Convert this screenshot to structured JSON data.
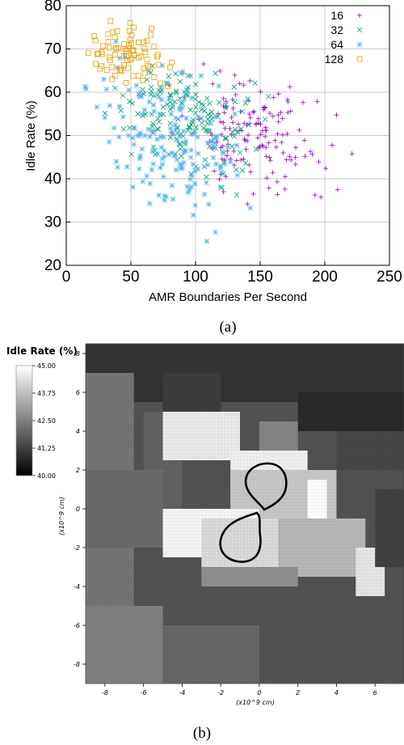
{
  "chart_data": [
    {
      "type": "scatter",
      "panel_caption": "(a)",
      "xlabel": "AMR Boundaries Per Second",
      "ylabel": "Idle Rate (%)",
      "xlim": [
        0,
        250
      ],
      "ylim": [
        20,
        80
      ],
      "xticks": [
        "0",
        "50",
        "100",
        "150",
        "200",
        "250"
      ],
      "yticks": [
        "20",
        "30",
        "40",
        "50",
        "60",
        "70",
        "80"
      ],
      "grid": true,
      "legend_position": "top-right",
      "series": [
        {
          "name": "16",
          "marker": "+",
          "color": "#9400d3",
          "cluster": {
            "x": [
              60,
              230
            ],
            "y": [
              33,
              68
            ]
          },
          "count": 150
        },
        {
          "name": "32",
          "marker": "x",
          "color": "#009e73",
          "cluster": {
            "x": [
              20,
              170
            ],
            "y": [
              36,
              72
            ]
          },
          "count": 150
        },
        {
          "name": "64",
          "marker": "*",
          "color": "#56b4e9",
          "cluster": {
            "x": [
              0,
              155
            ],
            "y": [
              24,
              72
            ]
          },
          "count": 170
        },
        {
          "name": "128",
          "marker": "square",
          "color": "#e69f00",
          "cluster": {
            "x": [
              0,
              100
            ],
            "y": [
              58,
              79
            ]
          },
          "count": 80
        }
      ]
    },
    {
      "type": "heatmap",
      "panel_caption": "(b)",
      "colorbar_title": "Idle Rate (%)",
      "colorbar_ticks": [
        "45.00",
        "43.75",
        "42.50",
        "41.25",
        "40.00"
      ],
      "colorbar_range": [
        40.0,
        45.0
      ],
      "xlabel": "(x10^9 cm)",
      "ylabel": "(x10^9 cm)",
      "xticks": [
        "-8",
        "-6",
        "-4",
        "-2",
        "0",
        "2",
        "4",
        "6"
      ],
      "yticks": [
        "8",
        "6",
        "4",
        "2",
        "0",
        "-2",
        "-4",
        "-6",
        "-8"
      ],
      "xlim": [
        -9,
        7.5
      ],
      "ylim": [
        -9,
        8.5
      ],
      "colors": {
        "low": "#000000",
        "high": "#ffffff",
        "contour": "#000000"
      }
    }
  ]
}
